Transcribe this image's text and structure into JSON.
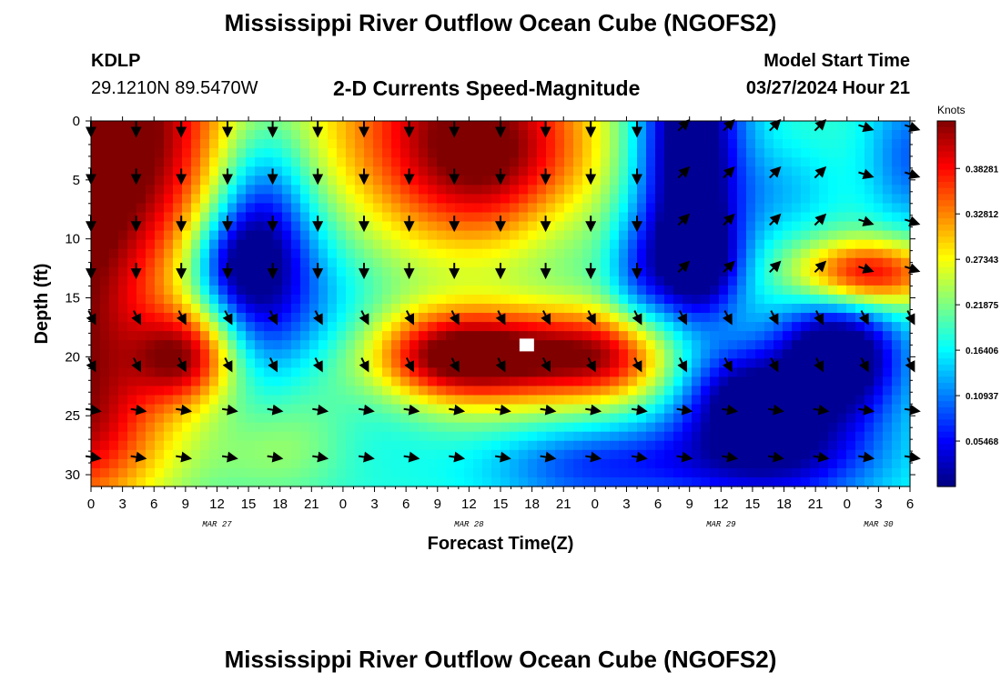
{
  "page": {
    "title": "Mississippi River Outflow Ocean Cube (NGOFS2)",
    "title_bottom": "Mississippi River Outflow Ocean Cube (NGOFS2)",
    "station": "KDLP",
    "coords": "29.1210N  89.5470W",
    "subtitle": "2-D Currents Speed-Magnitude",
    "model_start_label": "Model Start Time",
    "model_start_value": "03/27/2024 Hour 21"
  },
  "chart_data": {
    "type": "heatmap",
    "title": "2-D Currents Speed-Magnitude",
    "xlabel": "Forecast Time(Z)",
    "ylabel": "Depth (ft)",
    "colorbar_label": "Knots",
    "colorbar_ticks": [
      "0.38281",
      "0.32812",
      "0.27343",
      "0.21875",
      "0.16406",
      "0.10937",
      "0.05468"
    ],
    "colorbar_values": [
      0.38281,
      0.32812,
      0.27343,
      0.21875,
      0.16406,
      0.10937,
      0.05468
    ],
    "colorbar_range": [
      0.0,
      0.44
    ],
    "x_tick_labels": [
      "0",
      "3",
      "6",
      "9",
      "12",
      "15",
      "18",
      "21",
      "0",
      "3",
      "6",
      "9",
      "12",
      "15",
      "18",
      "21",
      "0",
      "3",
      "6",
      "9",
      "12",
      "15",
      "18",
      "21",
      "0",
      "3",
      "6"
    ],
    "x_range_hours": [
      0,
      78
    ],
    "date_labels": [
      {
        "label": "MAR 27",
        "hour": 12
      },
      {
        "label": "MAR 28",
        "hour": 36
      },
      {
        "label": "MAR 29",
        "hour": 60
      },
      {
        "label": "MAR 30",
        "hour": 75
      }
    ],
    "y_tick_labels": [
      "0",
      "5",
      "10",
      "15",
      "20",
      "25",
      "30"
    ],
    "y_ticks": [
      0,
      5,
      10,
      15,
      20,
      25,
      30
    ],
    "ylim": [
      0,
      31
    ],
    "y_inverted": true,
    "colormap": "jet",
    "marker": {
      "hour": 41.5,
      "depth": 19
    },
    "vector_hours": [
      0,
      4.3,
      8.6,
      13,
      17.3,
      21.6,
      26,
      30.3,
      34.6,
      39,
      43.3,
      47.6,
      52,
      56.3,
      60.6,
      65,
      69.3,
      73.6,
      78
    ],
    "vector_depths": [
      0.5,
      4.5,
      8.5,
      12.5,
      16.5,
      20.5,
      24.5,
      28.5
    ]
  }
}
